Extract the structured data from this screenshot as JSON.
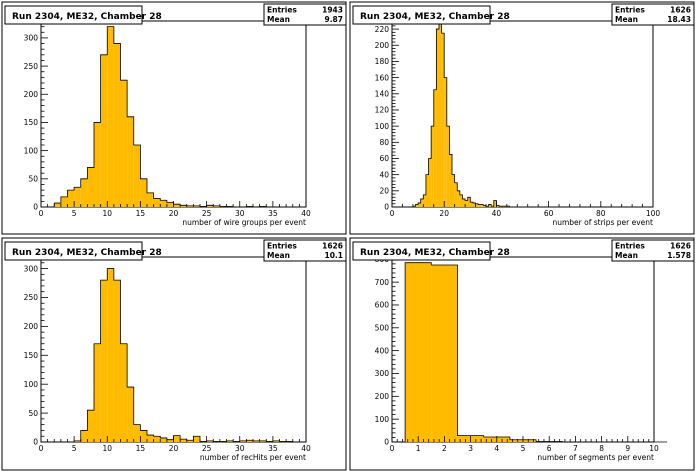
{
  "colors": {
    "fill": "#ffbb00",
    "line": "#000000",
    "background": "#ffffff"
  },
  "chart_data": [
    {
      "type": "bar",
      "title": "Run 2304, ME32, Chamber 28",
      "stats": {
        "entries_label": "Entries",
        "entries": "1943",
        "mean_label": "Mean",
        "mean": "9.87"
      },
      "xlabel": "number of wire groups per event",
      "xlim": [
        0,
        40
      ],
      "ylim": [
        0,
        330
      ],
      "xticks": [
        0,
        5,
        10,
        15,
        20,
        25,
        30,
        35,
        40
      ],
      "yticks": [
        0,
        50,
        100,
        150,
        200,
        250,
        300
      ],
      "bin_start": 0,
      "bin_width": 1,
      "values": [
        0,
        0,
        7,
        18,
        30,
        35,
        50,
        70,
        150,
        270,
        320,
        290,
        225,
        160,
        110,
        50,
        25,
        15,
        12,
        8,
        5,
        3,
        2,
        2,
        1,
        3,
        2,
        1,
        1,
        0,
        0,
        1,
        0,
        1,
        0,
        0,
        0,
        0,
        0,
        0
      ]
    },
    {
      "type": "bar",
      "title": "Run 2304, ME32, Chamber 28",
      "stats": {
        "entries_label": "Entries",
        "entries": "1626",
        "mean_label": "Mean",
        "mean": "18.43"
      },
      "xlabel": "number of strips per event",
      "xlim": [
        0,
        100
      ],
      "ylim": [
        0,
        230
      ],
      "xticks": [
        0,
        20,
        40,
        60,
        80,
        100
      ],
      "yticks": [
        0,
        20,
        40,
        60,
        80,
        100,
        120,
        140,
        160,
        180,
        200,
        220
      ],
      "bin_start": 0,
      "bin_width": 1,
      "values": [
        0,
        0,
        0,
        0,
        0,
        0,
        0,
        0,
        1,
        3,
        5,
        10,
        15,
        40,
        60,
        100,
        145,
        220,
        228,
        215,
        160,
        100,
        65,
        40,
        30,
        20,
        15,
        10,
        8,
        12,
        6,
        5,
        4,
        3,
        3,
        2,
        1,
        3,
        1,
        8,
        2,
        1,
        1,
        1,
        1,
        0,
        0,
        0,
        0,
        0,
        0,
        0,
        0,
        0,
        0,
        0,
        0,
        0,
        0,
        0,
        0,
        0,
        0,
        0,
        0,
        0,
        0,
        0,
        0,
        0,
        0,
        0,
        0,
        0,
        0,
        0,
        0,
        0,
        0,
        0,
        0,
        0,
        0,
        0,
        0,
        0,
        0,
        0,
        0,
        0,
        0,
        0,
        0,
        0,
        0,
        0,
        0,
        0,
        0,
        0
      ]
    },
    {
      "type": "bar",
      "title": "Run 2304, ME32, Chamber 28",
      "stats": {
        "entries_label": "Entries",
        "entries": "1626",
        "mean_label": "Mean",
        "mean": "10.1"
      },
      "xlabel": "number of recHits per event",
      "xlim": [
        0,
        40
      ],
      "ylim": [
        0,
        320
      ],
      "xticks": [
        0,
        5,
        10,
        15,
        20,
        25,
        30,
        35,
        40
      ],
      "yticks": [
        0,
        50,
        100,
        150,
        200,
        250,
        300
      ],
      "bin_start": 0,
      "bin_width": 1,
      "values": [
        0,
        0,
        0,
        0,
        0,
        2,
        20,
        55,
        170,
        280,
        300,
        280,
        170,
        95,
        30,
        20,
        12,
        10,
        7,
        4,
        11,
        5,
        3,
        10,
        1,
        2,
        1,
        1,
        2,
        1,
        2,
        3,
        2,
        2,
        1,
        2,
        1,
        1,
        0,
        0
      ]
    },
    {
      "type": "bar",
      "title": "Run 2304, ME32, Chamber 28",
      "stats": {
        "entries_label": "Entries",
        "entries": "1626",
        "mean_label": "Mean",
        "mean": "1.578"
      },
      "xlabel": "number of segments per event",
      "xlim": [
        0,
        10
      ],
      "ylim": [
        0,
        810
      ],
      "xticks": [
        0,
        1,
        2,
        3,
        4,
        5,
        6,
        7,
        8,
        9,
        10
      ],
      "yticks": [
        0,
        100,
        200,
        300,
        400,
        500,
        600,
        700,
        800
      ],
      "bin_start": 0.5,
      "bin_width": 1,
      "values": [
        785,
        775,
        28,
        22,
        10,
        2,
        0,
        0,
        0,
        0
      ]
    }
  ]
}
